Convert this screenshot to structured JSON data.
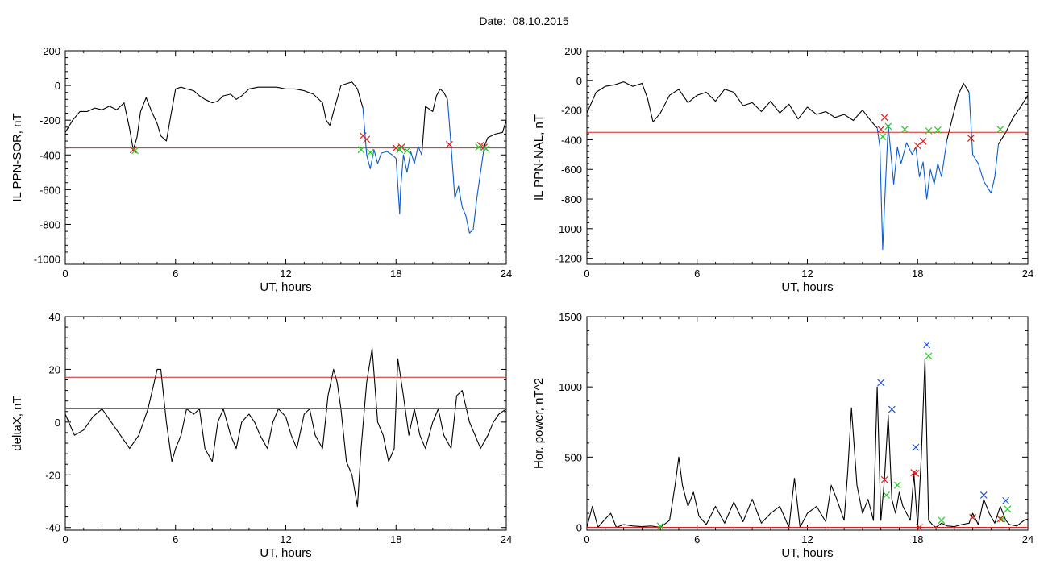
{
  "header": {
    "date_label": "Date:",
    "date_value": "08.10.2015"
  },
  "colors": {
    "trace": "#000000",
    "blue_trace": "#0a5ccf",
    "red_line": "#d62222",
    "teal_line": "#1a8aaa",
    "red_marker": "#d62222",
    "green_marker": "#22cc22",
    "blue_marker": "#2255dd"
  },
  "chart_data": [
    {
      "type": "line",
      "ylabel": "IL PPN-SOR, nT",
      "xlabel": "UT, hours",
      "xlim": [
        0,
        24
      ],
      "ylim": [
        -1030,
        200
      ],
      "xticks": [
        0,
        6,
        12,
        18,
        24
      ],
      "yticks": [
        200,
        0,
        -200,
        -400,
        -600,
        -800,
        -1000
      ],
      "grid": false,
      "hlines": [
        {
          "y": -360,
          "color": "red"
        }
      ],
      "series": [
        {
          "color": "black",
          "x": [
            0,
            0.4,
            0.8,
            1.2,
            1.6,
            2,
            2.4,
            2.8,
            3.2,
            3.5,
            3.7,
            3.9,
            4.1,
            4.4,
            4.7,
            5,
            5.2,
            5.5,
            5.7,
            6,
            6.3,
            6.6,
            7,
            7.3,
            7.6,
            8,
            8.3,
            8.6,
            9,
            9.3,
            9.6,
            10,
            10.5,
            11,
            11.5,
            12,
            12.5,
            13,
            13.5,
            14,
            14.2,
            14.4,
            14.6,
            15,
            15.3,
            15.6,
            15.9,
            16.2
          ],
          "y": [
            -270,
            -200,
            -150,
            -150,
            -130,
            -140,
            -120,
            -140,
            -100,
            -250,
            -370,
            -300,
            -150,
            -70,
            -150,
            -220,
            -290,
            -320,
            -200,
            -20,
            -10,
            -20,
            -30,
            -60,
            -80,
            -100,
            -90,
            -60,
            -50,
            -80,
            -60,
            -20,
            -10,
            -10,
            -10,
            -20,
            -20,
            -30,
            -50,
            -100,
            -200,
            -230,
            -150,
            0,
            10,
            20,
            -20,
            -130
          ]
        },
        {
          "color": "blue",
          "x": [
            16.2,
            16.4,
            16.6,
            16.8,
            17,
            17.2,
            17.5,
            17.8,
            18,
            18.2,
            18.25,
            18.4,
            18.6,
            18.8,
            19,
            19.2,
            19.4
          ],
          "y": [
            -130,
            -400,
            -480,
            -370,
            -450,
            -390,
            -380,
            -400,
            -420,
            -740,
            -600,
            -400,
            -500,
            -380,
            -450,
            -350,
            -400
          ]
        },
        {
          "color": "black",
          "x": [
            19.4,
            19.6,
            20,
            20.2,
            20.4,
            20.6,
            20.8
          ],
          "y": [
            -400,
            -120,
            -150,
            -60,
            -20,
            -40,
            -80
          ]
        },
        {
          "color": "blue",
          "x": [
            20.8,
            21,
            21.2,
            21.4,
            21.6,
            21.8,
            22,
            22.2,
            22.4,
            22.6,
            22.8
          ],
          "y": [
            -80,
            -350,
            -650,
            -580,
            -700,
            -750,
            -850,
            -830,
            -650,
            -500,
            -350
          ]
        },
        {
          "color": "black",
          "x": [
            22.8,
            23,
            23.4,
            23.8,
            24
          ],
          "y": [
            -350,
            -300,
            -280,
            -270,
            -200
          ]
        }
      ],
      "markers": [
        {
          "color": "red",
          "x": [
            3.7,
            16.2,
            16.4,
            18,
            18.3,
            20.9,
            22.6,
            22.8
          ],
          "y": [
            -370,
            -290,
            -310,
            -360,
            -355,
            -340,
            -345,
            -355
          ]
        },
        {
          "color": "green",
          "x": [
            3.8,
            16.1,
            16.6,
            18.2,
            18.6,
            22.5,
            22.9
          ],
          "y": [
            -375,
            -370,
            -385,
            -370,
            -375,
            -355,
            -365
          ]
        }
      ]
    },
    {
      "type": "line",
      "ylabel": "IL PPN-NAL, nT",
      "xlabel": "UT, hours",
      "xlim": [
        0,
        24
      ],
      "ylim": [
        -1240,
        200
      ],
      "xticks": [
        0,
        6,
        12,
        18,
        24
      ],
      "yticks": [
        200,
        0,
        -200,
        -400,
        -600,
        -800,
        -1000,
        -1200
      ],
      "grid": false,
      "hlines": [
        {
          "y": -350,
          "color": "red"
        }
      ],
      "series": [
        {
          "color": "black",
          "x": [
            0,
            0.5,
            1,
            1.5,
            2,
            2.5,
            3,
            3.3,
            3.6,
            4,
            4.5,
            5,
            5.5,
            6,
            6.5,
            7,
            7.5,
            8,
            8.5,
            9,
            9.5,
            10,
            10.5,
            11,
            11.5,
            12,
            12.5,
            13,
            13.5,
            14,
            14.5,
            15,
            15.5,
            15.8
          ],
          "y": [
            -220,
            -80,
            -40,
            -30,
            -10,
            -40,
            -20,
            -120,
            -280,
            -220,
            -100,
            -60,
            -150,
            -100,
            -80,
            -140,
            -60,
            -80,
            -170,
            -150,
            -210,
            -140,
            -220,
            -160,
            -260,
            -180,
            -230,
            -210,
            -250,
            -230,
            -270,
            -200,
            -280,
            -320
          ]
        },
        {
          "color": "blue",
          "x": [
            15.8,
            15.95,
            16.1,
            16.25,
            16.4,
            16.55,
            16.7,
            16.9,
            17.1,
            17.4,
            17.7,
            17.9,
            18.1,
            18.3,
            18.5,
            18.7,
            18.9,
            19.1,
            19.3,
            19.6
          ],
          "y": [
            -320,
            -450,
            -1140,
            -700,
            -300,
            -500,
            -700,
            -450,
            -560,
            -420,
            -500,
            -450,
            -650,
            -550,
            -800,
            -600,
            -700,
            -560,
            -650,
            -400
          ]
        },
        {
          "color": "black",
          "x": [
            19.6,
            19.9,
            20.2,
            20.5,
            20.8
          ],
          "y": [
            -400,
            -250,
            -100,
            -20,
            -80
          ]
        },
        {
          "color": "blue",
          "x": [
            20.8,
            21,
            21.3,
            21.6,
            22,
            22.2,
            22.4
          ],
          "y": [
            -80,
            -500,
            -560,
            -680,
            -760,
            -650,
            -430
          ]
        },
        {
          "color": "black",
          "x": [
            22.4,
            22.8,
            23.2,
            23.6,
            24
          ],
          "y": [
            -430,
            -350,
            -250,
            -180,
            -100
          ]
        }
      ],
      "markers": [
        {
          "color": "red",
          "x": [
            16.0,
            16.2,
            18.0,
            18.3,
            20.9
          ],
          "y": [
            -330,
            -250,
            -440,
            -410,
            -390
          ]
        },
        {
          "color": "green",
          "x": [
            16.1,
            16.4,
            17.3,
            18.6,
            19.1,
            22.5
          ],
          "y": [
            -380,
            -310,
            -330,
            -340,
            -335,
            -330
          ]
        }
      ]
    },
    {
      "type": "line",
      "ylabel": "deltaX, nT",
      "xlabel": "UT, hours",
      "xlim": [
        0,
        24
      ],
      "ylim": [
        -41,
        40
      ],
      "xticks": [
        0,
        6,
        12,
        18,
        24
      ],
      "yticks": [
        40,
        20,
        0,
        -20,
        -40
      ],
      "grid": false,
      "hlines": [
        {
          "y": 17,
          "color": "red"
        },
        {
          "y": 5,
          "color": "teal"
        }
      ],
      "series": [
        {
          "color": "black",
          "x": [
            0,
            0.5,
            1,
            1.5,
            2,
            2.5,
            3,
            3.5,
            4,
            4.5,
            5,
            5.2,
            5.5,
            5.8,
            6,
            6.3,
            6.6,
            7,
            7.3,
            7.6,
            8,
            8.3,
            8.6,
            9,
            9.3,
            9.6,
            10,
            10.3,
            10.6,
            11,
            11.3,
            11.6,
            12,
            12.3,
            12.6,
            13,
            13.3,
            13.6,
            14,
            14.3,
            14.6,
            14.8,
            15,
            15.3,
            15.6,
            15.9,
            16.1,
            16.4,
            16.7,
            17,
            17.3,
            17.6,
            17.9,
            18.1,
            18.4,
            18.7,
            19,
            19.3,
            19.6,
            20,
            20.3,
            20.6,
            21,
            21.3,
            21.6,
            22,
            22.3,
            22.6,
            23,
            23.3,
            23.6,
            24
          ],
          "y": [
            3,
            -5,
            -3,
            2,
            5,
            0,
            -5,
            -10,
            -5,
            5,
            20,
            20,
            0,
            -15,
            -10,
            -5,
            5,
            3,
            5,
            -10,
            -15,
            0,
            5,
            -5,
            -10,
            0,
            3,
            0,
            -5,
            -10,
            0,
            5,
            2,
            -5,
            -10,
            3,
            5,
            -5,
            -10,
            10,
            20,
            15,
            5,
            -15,
            -20,
            -32,
            -10,
            15,
            28,
            0,
            -5,
            -15,
            -10,
            24,
            10,
            -5,
            5,
            -5,
            -10,
            0,
            5,
            -5,
            -10,
            10,
            12,
            0,
            -5,
            -10,
            -5,
            0,
            3,
            5
          ]
        }
      ],
      "markers": []
    },
    {
      "type": "line",
      "ylabel": "Hor. power, nT^2",
      "xlabel": "UT, hours",
      "xlim": [
        0,
        24
      ],
      "ylim": [
        -20,
        1500
      ],
      "xticks": [
        0,
        6,
        12,
        18,
        24
      ],
      "yticks": [
        1500,
        1000,
        500,
        0
      ],
      "grid": false,
      "hlines": [
        {
          "y": 0,
          "color": "red"
        }
      ],
      "series": [
        {
          "color": "black",
          "x": [
            0,
            0.3,
            0.6,
            1,
            1.3,
            1.6,
            2,
            2.5,
            3,
            3.5,
            4,
            4.5,
            4.8,
            5,
            5.2,
            5.5,
            5.8,
            6.1,
            6.5,
            7,
            7.5,
            8,
            8.5,
            9,
            9.5,
            10,
            10.5,
            11,
            11.3,
            11.6,
            12,
            12.5,
            13,
            13.3,
            13.6,
            14,
            14.2,
            14.4,
            14.7,
            15,
            15.3,
            15.6,
            15.8,
            16,
            16.2,
            16.4,
            16.6,
            16.8,
            17,
            17.2,
            17.4,
            17.6,
            17.8,
            18,
            18.2,
            18.4,
            18.6,
            18.8,
            19,
            19.3,
            19.6,
            20,
            20.4,
            20.8,
            21,
            21.3,
            21.6,
            21.9,
            22.2,
            22.5,
            22.8,
            23,
            23.4,
            23.8,
            24
          ],
          "y": [
            0,
            150,
            0,
            60,
            100,
            0,
            20,
            10,
            5,
            10,
            0,
            50,
            300,
            500,
            300,
            150,
            250,
            80,
            20,
            150,
            30,
            180,
            40,
            200,
            30,
            100,
            150,
            0,
            350,
            0,
            100,
            150,
            40,
            300,
            200,
            50,
            400,
            850,
            300,
            100,
            200,
            50,
            1000,
            50,
            350,
            800,
            200,
            100,
            250,
            150,
            100,
            50,
            380,
            0,
            500,
            1200,
            50,
            20,
            0,
            30,
            10,
            5,
            20,
            30,
            100,
            20,
            200,
            100,
            30,
            150,
            50,
            20,
            10,
            50,
            60
          ]
        }
      ],
      "markers": [
        {
          "color": "blue",
          "x": [
            16.0,
            16.6,
            17.9,
            18.5,
            21.6,
            22.8
          ],
          "y": [
            1030,
            840,
            570,
            1300,
            230,
            190
          ]
        },
        {
          "color": "green",
          "x": [
            4.0,
            16.3,
            16.9,
            18.6,
            19.3,
            22.6,
            22.9
          ],
          "y": [
            10,
            230,
            300,
            1220,
            50,
            60,
            130
          ]
        },
        {
          "color": "red",
          "x": [
            16.2,
            17.8,
            17.9,
            18.1,
            21.0,
            22.5
          ],
          "y": [
            340,
            390,
            385,
            0,
            70,
            60
          ]
        }
      ]
    }
  ]
}
